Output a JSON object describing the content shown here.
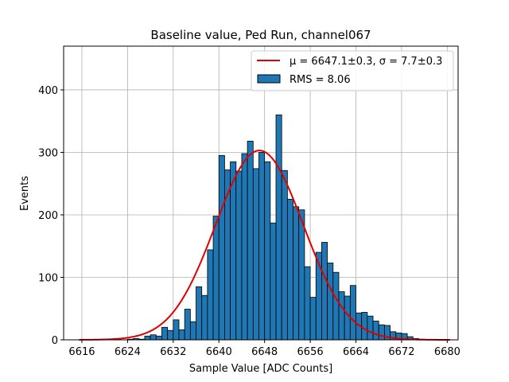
{
  "chart_data": {
    "type": "bar",
    "title": "Baseline value, Ped Run, channel067",
    "xlabel": "Sample Value [ADC Counts]",
    "ylabel": "Events",
    "xlim": [
      6612.8,
      6681.9
    ],
    "ylim": [
      0,
      470
    ],
    "bin_width": 1,
    "x_ticks": [
      6616,
      6624,
      6632,
      6640,
      6648,
      6656,
      6664,
      6672,
      6680
    ],
    "y_ticks": [
      0,
      100,
      200,
      300,
      400
    ],
    "grid": true,
    "legend_position": "top-right",
    "bar_color": "#1f77b4",
    "fit_color": "#e00000",
    "legend": [
      {
        "kind": "line",
        "label": "μ = 6647.1±0.3, σ = 7.7±0.3"
      },
      {
        "kind": "patch",
        "label": "RMS = 8.06"
      }
    ],
    "histogram": {
      "bin_left_edges": [
        6624,
        6625,
        6626,
        6627,
        6628,
        6629,
        6630,
        6631,
        6632,
        6633,
        6634,
        6635,
        6636,
        6637,
        6638,
        6639,
        6640,
        6641,
        6642,
        6643,
        6644,
        6645,
        6646,
        6647,
        6648,
        6649,
        6650,
        6651,
        6652,
        6653,
        6654,
        6655,
        6656,
        6657,
        6658,
        6659,
        6660,
        6661,
        6662,
        6663,
        6664,
        6665,
        6666,
        6667,
        6668,
        6669,
        6670,
        6671,
        6672,
        6673,
        6674,
        6675
      ],
      "counts": [
        1,
        2,
        1,
        6,
        8,
        6,
        20,
        15,
        32,
        16,
        49,
        29,
        85,
        71,
        144,
        198,
        295,
        272,
        285,
        270,
        298,
        318,
        274,
        300,
        285,
        187,
        360,
        271,
        225,
        213,
        208,
        117,
        68,
        140,
        156,
        123,
        108,
        77,
        70,
        87,
        43,
        44,
        38,
        30,
        24,
        23,
        13,
        11,
        10,
        5,
        2,
        1
      ]
    },
    "fit": {
      "type": "gaussian",
      "mu": 6647.1,
      "sigma": 7.7,
      "amplitude": 303,
      "x_range": [
        6615.5,
        6680.5
      ]
    }
  }
}
